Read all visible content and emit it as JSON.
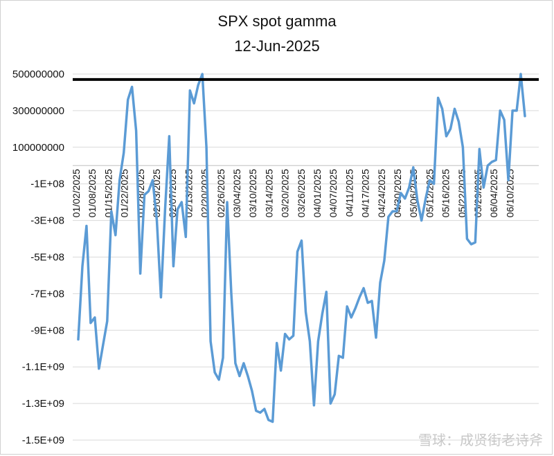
{
  "chart_data": {
    "type": "line",
    "title": "SPX spot gamma",
    "subtitle": "12-Jun-2025",
    "xlabel": "",
    "ylabel": "",
    "ylim": [
      -1500000000,
      500000000
    ],
    "y_tick_values": [
      500000000,
      300000000,
      100000000,
      -100000000,
      -300000000,
      -500000000,
      -700000000,
      -900000000,
      -1100000000,
      -1300000000,
      -1500000000
    ],
    "y_tick_labels": [
      "500000000",
      "300000000",
      "100000000",
      "-1E+08",
      "-3E+08",
      "-5E+08",
      "-7E+08",
      "-9E+08",
      "-1.1E+09",
      "-1.3E+09",
      "-1.5E+09"
    ],
    "x_tick_labels": [
      "01/02/2025",
      "01/08/2025",
      "01/15/2025",
      "01/22/2025",
      "01/28/2025",
      "02/03/2025",
      "02/07/2025",
      "02/13/2025",
      "02/20/2025",
      "02/26/2025",
      "03/04/2025",
      "03/10/2025",
      "03/14/2025",
      "03/20/2025",
      "03/26/2025",
      "04/01/2025",
      "04/07/2025",
      "04/11/2025",
      "04/17/2025",
      "04/24/2025",
      "04/30/2025",
      "05/06/2025",
      "05/12/2025",
      "05/16/2025",
      "05/22/2025",
      "05/29/2025",
      "06/04/2025",
      "06/10/2025"
    ],
    "reference_line": 470000000,
    "grid": true,
    "series_color": "#5b9bd5",
    "reference_line_color": "#000000",
    "series": [
      {
        "values": [
          -950000000,
          -550000000,
          -330000000,
          -860000000,
          -830000000,
          -1110000000,
          -980000000,
          -850000000,
          -250000000,
          -380000000,
          -80000000,
          70000000,
          360000000,
          430000000,
          190000000,
          -590000000,
          -160000000,
          -140000000,
          -80000000,
          -300000000,
          -720000000,
          -240000000,
          160000000,
          -550000000,
          -240000000,
          -200000000,
          -390000000,
          410000000,
          340000000,
          440000000,
          500000000,
          100000000,
          -960000000,
          -1130000000,
          -1170000000,
          -1050000000,
          -200000000,
          -700000000,
          -1080000000,
          -1150000000,
          -1080000000,
          -1150000000,
          -1230000000,
          -1340000000,
          -1350000000,
          -1330000000,
          -1390000000,
          -1400000000,
          -970000000,
          -1120000000,
          -920000000,
          -950000000,
          -930000000,
          -470000000,
          -410000000,
          -800000000,
          -960000000,
          -1310000000,
          -960000000,
          -810000000,
          -690000000,
          -1300000000,
          -1250000000,
          -1040000000,
          -1050000000,
          -770000000,
          -830000000,
          -780000000,
          -720000000,
          -670000000,
          -750000000,
          -740000000,
          -940000000,
          -640000000,
          -520000000,
          -280000000,
          -250000000,
          -250000000,
          -150000000,
          -180000000,
          -120000000,
          -10000000,
          -190000000,
          -300000000,
          -180000000,
          -80000000,
          -100000000,
          370000000,
          310000000,
          160000000,
          200000000,
          310000000,
          240000000,
          100000000,
          -400000000,
          -430000000,
          -420000000,
          90000000,
          -120000000,
          0,
          20000000,
          30000000,
          300000000,
          250000000,
          -80000000,
          300000000,
          300000000,
          500000000,
          270000000
        ]
      }
    ]
  },
  "watermark": "雪球：成贤街老诗斧"
}
